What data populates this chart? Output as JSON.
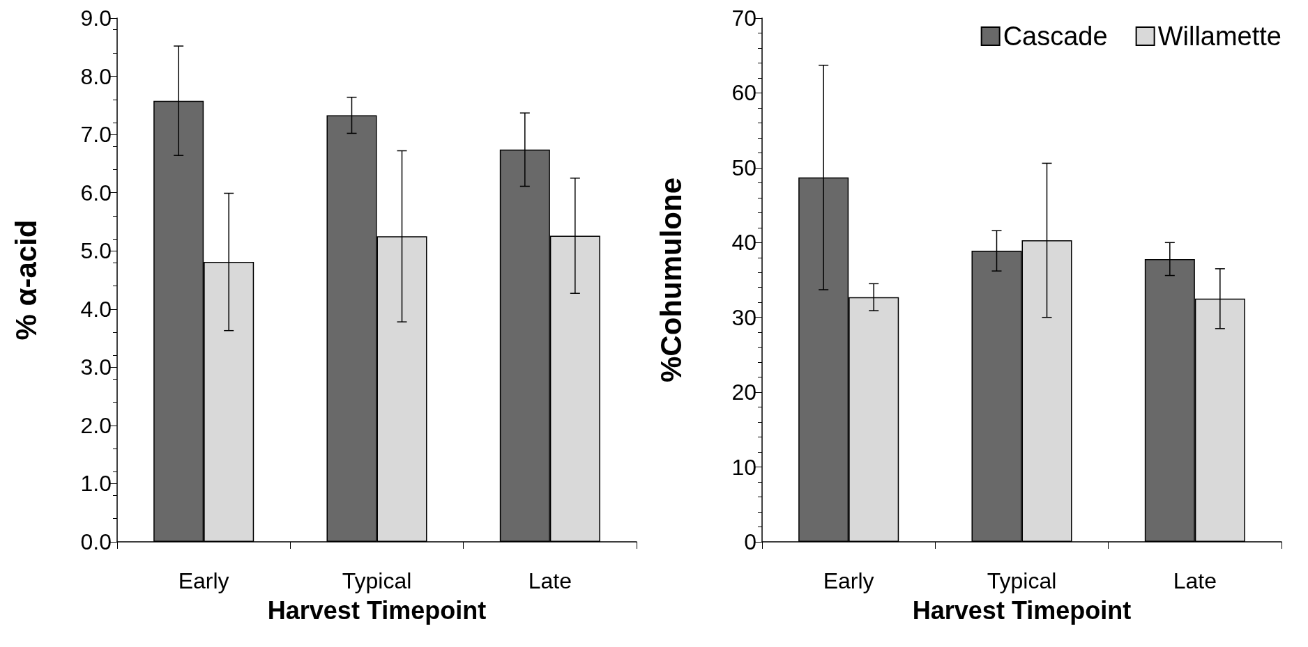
{
  "chart_data": [
    {
      "type": "bar",
      "categories": [
        "Early",
        "Typical",
        "Late"
      ],
      "xlabel": "Harvest Timepoint",
      "ylabel": "% α-acid",
      "series": [
        {
          "color": "#696969",
          "values": [
            7.58,
            7.33,
            6.74
          ],
          "errors": [
            0.94,
            0.31,
            0.63
          ]
        },
        {
          "color": "#d9d9d9",
          "values": [
            4.81,
            5.25,
            5.26
          ],
          "errors": [
            1.18,
            1.47,
            0.99
          ]
        }
      ],
      "ylim": [
        0,
        9
      ],
      "yticks": [
        {
          "value": 0,
          "label": "0.0"
        },
        {
          "value": 1,
          "label": "1.0"
        },
        {
          "value": 2,
          "label": "2.0"
        },
        {
          "value": 3,
          "label": "3.0"
        },
        {
          "value": 4,
          "label": "4.0"
        },
        {
          "value": 5,
          "label": "5.0"
        },
        {
          "value": 6,
          "label": "6.0"
        },
        {
          "value": 7,
          "label": "7.0"
        },
        {
          "value": 8,
          "label": "8.0"
        },
        {
          "value": 9,
          "label": "9.0"
        }
      ],
      "grid": false,
      "legend": false
    },
    {
      "type": "bar",
      "categories": [
        "Early",
        "Typical",
        "Late"
      ],
      "xlabel": "Harvest Timepoint",
      "ylabel": "%Cohumulone",
      "series": [
        {
          "name": "Cascade",
          "color": "#696969",
          "values": [
            48.7,
            38.9,
            37.8
          ],
          "errors": [
            15,
            2.7,
            2.2
          ]
        },
        {
          "name": "Willamette",
          "color": "#d9d9d9",
          "values": [
            32.7,
            40.3,
            32.5
          ],
          "errors": [
            1.8,
            10.3,
            4.0
          ]
        }
      ],
      "ylim": [
        0,
        70
      ],
      "yticks": [
        0,
        10,
        20,
        30,
        40,
        50,
        60,
        70
      ],
      "grid": false,
      "legend": "top right"
    }
  ]
}
